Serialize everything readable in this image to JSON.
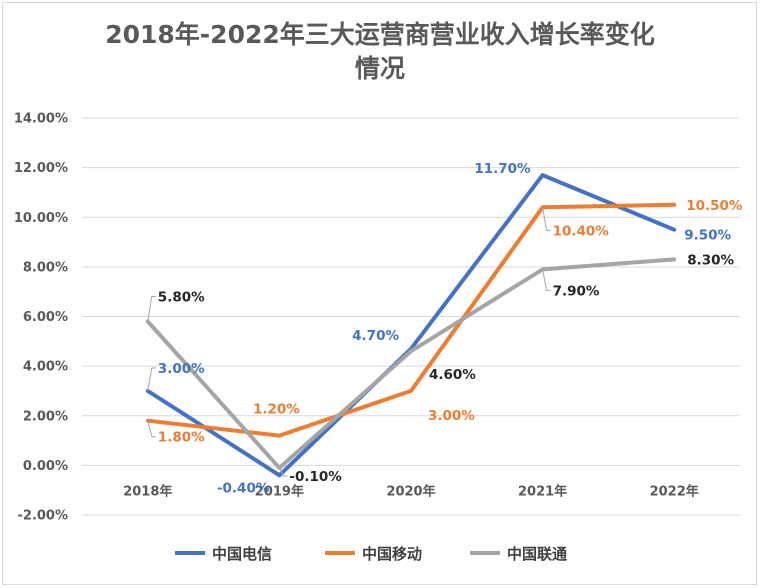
{
  "chart_data": {
    "type": "line",
    "title_line1": "2018年-2022年三大运营商营业收入增长率变化",
    "title_line2": "情况",
    "categories": [
      "2018年",
      "2019年",
      "2020年",
      "2021年",
      "2022年"
    ],
    "y_ticks": [
      "-2.00%",
      "0.00%",
      "2.00%",
      "4.00%",
      "6.00%",
      "8.00%",
      "10.00%",
      "12.00%",
      "14.00%"
    ],
    "ylim": [
      -2,
      14
    ],
    "grid": true,
    "legend_position": "bottom",
    "series": [
      {
        "name": "中国电信",
        "color": "#4472C4",
        "values": [
          3.0,
          -0.4,
          4.7,
          11.7,
          9.5
        ],
        "labels": [
          "3.00%",
          "-0.40%",
          "4.70%",
          "11.70%",
          "9.50%"
        ]
      },
      {
        "name": "中国移动",
        "color": "#ED7D31",
        "values": [
          1.8,
          1.2,
          3.0,
          10.4,
          10.5
        ],
        "labels": [
          "1.80%",
          "1.20%",
          "3.00%",
          "10.40%",
          "10.50%"
        ]
      },
      {
        "name": "中国联通",
        "color": "#A5A5A5",
        "label_color": "#262626",
        "values": [
          5.8,
          -0.1,
          4.6,
          7.9,
          8.3
        ],
        "labels": [
          "5.80%",
          "-0.10%",
          "4.60%",
          "7.90%",
          "8.30%"
        ]
      }
    ]
  }
}
